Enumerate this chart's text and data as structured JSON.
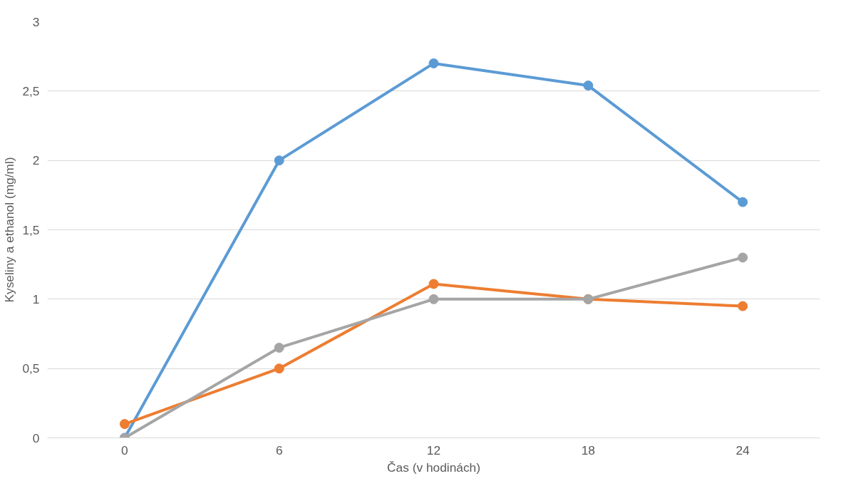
{
  "chart_data": {
    "type": "line",
    "xlabel": "Čas (v hodinách)",
    "ylabel": "Kyseliny a ethanol (mg/ml)",
    "categories": [
      "0",
      "6",
      "12",
      "18",
      "24"
    ],
    "series": [
      {
        "color": "#5b9bd5",
        "values": [
          0,
          2,
          2.7,
          2.54,
          1.7
        ]
      },
      {
        "color": "#ed7d31",
        "values": [
          0.1,
          0.5,
          1.11,
          1.0,
          0.95
        ]
      },
      {
        "color": "#a5a5a5",
        "values": [
          0,
          0.65,
          1.0,
          1.0,
          1.3
        ]
      }
    ],
    "ylim": [
      0,
      3
    ],
    "yticks": [
      0,
      {
        "value": 0.5,
        "label": "0,5"
      },
      1,
      {
        "value": 1.5,
        "label": "1,5"
      },
      2,
      {
        "value": 2.5,
        "label": "2,5"
      },
      3
    ],
    "grid": "y",
    "marker": "circle",
    "line_style": "solid"
  }
}
